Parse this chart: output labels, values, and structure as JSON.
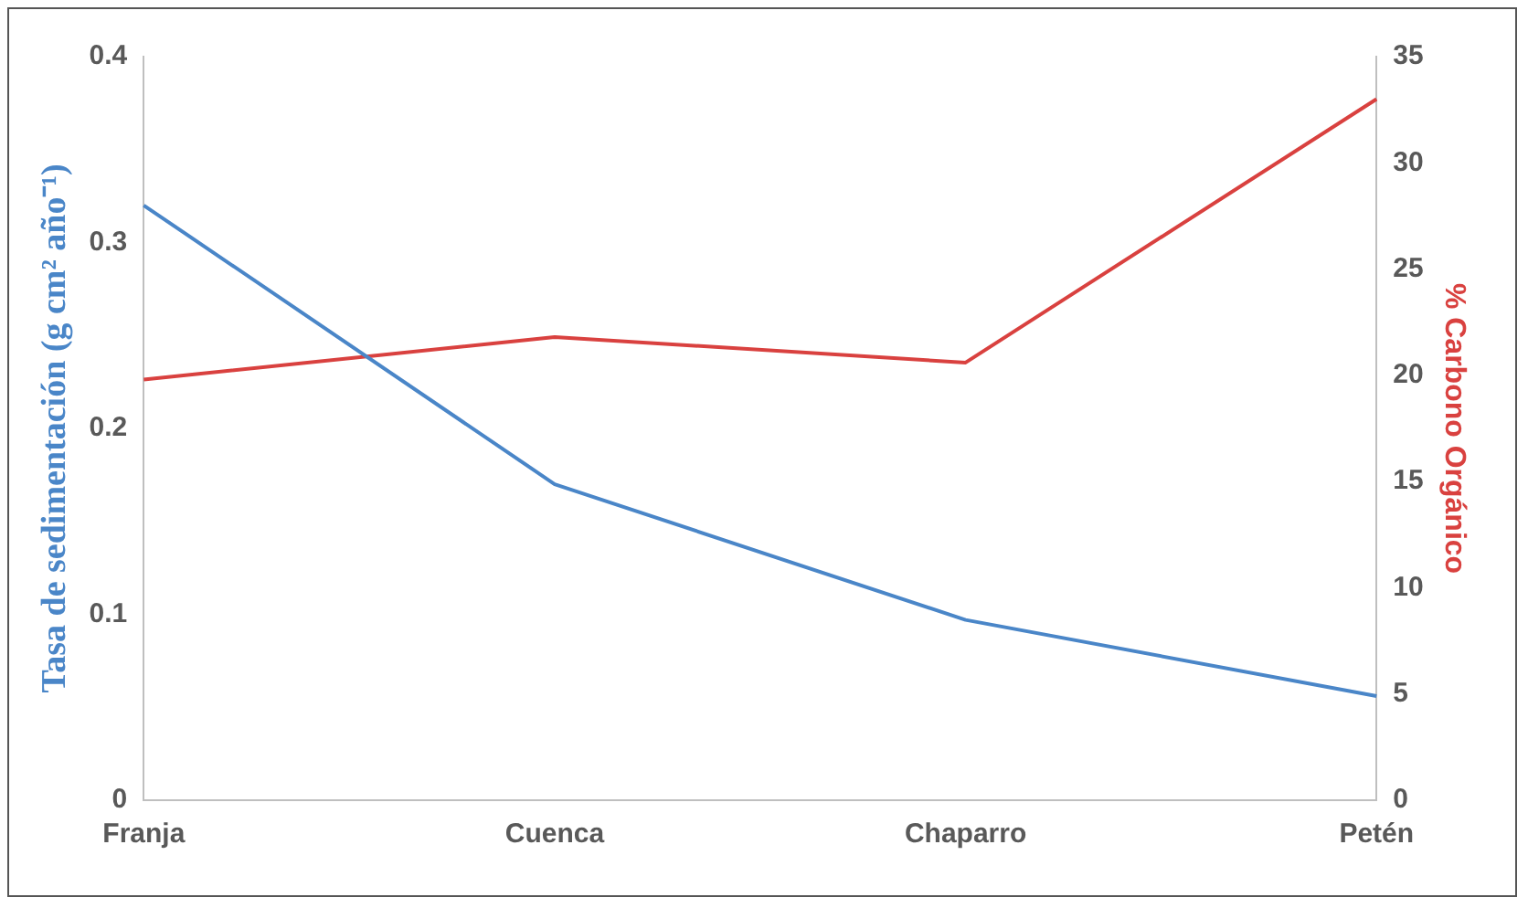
{
  "chart_data": {
    "type": "line",
    "categories": [
      "Franja",
      "Cuenca",
      "Chaparro",
      "Petén"
    ],
    "ylabel": "Tasa de sedimentación (g cm² año⁻¹)",
    "y2label": "% Carbono Orgánico",
    "series": [
      {
        "color": "#4a86c8",
        "values": [
          0.32,
          0.17,
          0.097,
          0.056
        ]
      },
      {
        "color": "#d9413f",
        "values": [
          19.8,
          21.8,
          20.6,
          33.0
        ],
        "axis": "y2"
      }
    ],
    "ylim": [
      0,
      0.4
    ],
    "yticks": [
      0,
      0.1,
      0.2,
      0.3,
      0.4
    ],
    "y2lim": [
      0,
      35
    ],
    "y2ticks": [
      0,
      5,
      10,
      15,
      20,
      25,
      30,
      35
    ],
    "grid": false,
    "legend": false,
    "marker": "none",
    "line_style": "solid"
  }
}
